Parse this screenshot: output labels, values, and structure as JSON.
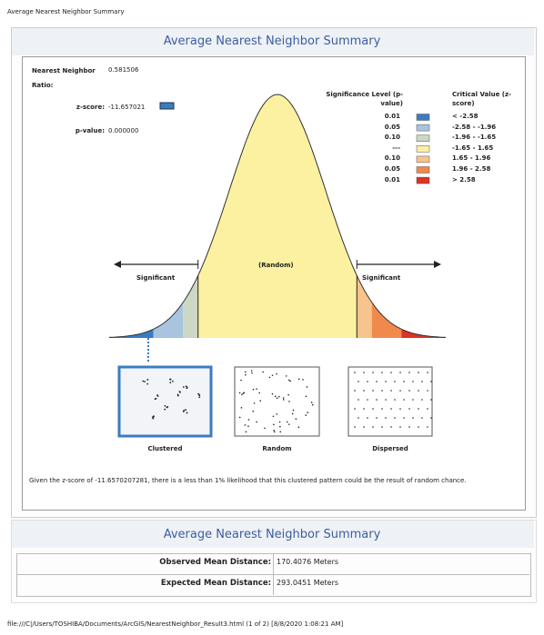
{
  "page_title": "Average Nearest Neighbor Summary",
  "report": {
    "title": "Average Nearest Neighbor Summary",
    "stats": [
      {
        "label": "Nearest Neighbor Ratio:",
        "value": "0.581506"
      },
      {
        "label": "z-score:",
        "value": "-11.657021"
      },
      {
        "label": "p-value:",
        "value": "0.000000"
      }
    ],
    "legend": {
      "header_p": "Significance Level (p-value)",
      "header_z": "Critical Value (z-score)",
      "rows": [
        {
          "p": "0.01",
          "z": "< -2.58",
          "color": "#3a7cc2"
        },
        {
          "p": "0.05",
          "z": "-2.58 - -1.96",
          "color": "#a8c4de"
        },
        {
          "p": "0.10",
          "z": "-1.96 - -1.65",
          "color": "#cdd8c4"
        },
        {
          "p": "---",
          "z": "-1.65 - 1.65",
          "color": "#fbf1a0"
        },
        {
          "p": "0.10",
          "z": "1.65 - 1.96",
          "color": "#f8c48e"
        },
        {
          "p": "0.05",
          "z": "1.96 - 2.58",
          "color": "#f08a4c"
        },
        {
          "p": "0.01",
          "z": "> 2.58",
          "color": "#de3226"
        }
      ]
    },
    "curve_labels": {
      "center": "(Random)",
      "left": "Significant",
      "right": "Significant"
    },
    "patterns": [
      "Clustered",
      "Random",
      "Dispersed"
    ],
    "description": "Given the z-score of -11.6570207281, there is a less than 1% likelihood that this clustered pattern could be the result of random chance."
  },
  "summary": {
    "title": "Average Nearest Neighbor Summary",
    "rows": [
      {
        "label": "Observed Mean Distance:",
        "value": "170.4076 Meters"
      },
      {
        "label": "Expected Mean Distance:",
        "value": "293.0451 Meters"
      }
    ]
  },
  "footer": "file:///C|/Users/TOSHIBA/Documents/ArcGIS/NearestNeighbor_Result3.html (1 of 2) [8/8/2020 1:08:21 AM]"
}
